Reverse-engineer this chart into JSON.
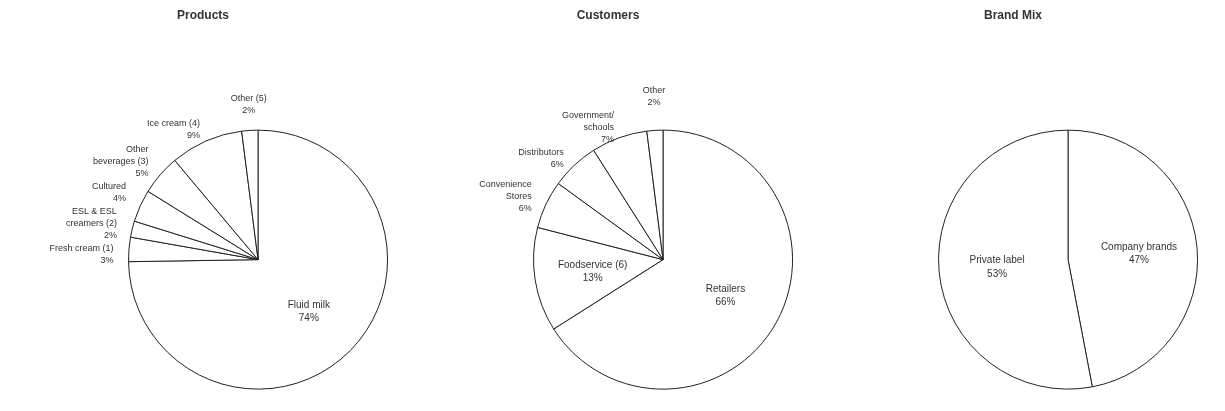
{
  "chart_data": [
    {
      "type": "pie",
      "title": "Products",
      "categories": [
        "Fluid milk",
        "Fresh cream (1)",
        "ESL & ESL creamers (2)",
        "Cultured",
        "Other beverages (3)",
        "Ice cream (4)",
        "Other (5)"
      ],
      "values": [
        74,
        3,
        2,
        4,
        5,
        9,
        2
      ],
      "value_labels": [
        "74%",
        "3%",
        "2%",
        "4%",
        "5%",
        "9%",
        "2%"
      ],
      "colors": [
        "#ffffff",
        "#ffffff",
        "#ffffff",
        "#ffffff",
        "#ffffff",
        "#ffffff",
        "#ffffff"
      ]
    },
    {
      "type": "pie",
      "title": "Customers",
      "categories": [
        "Retailers",
        "Foodservice (6)",
        "Convenience Stores",
        "Distributors",
        "Government/ schools",
        "Other"
      ],
      "values": [
        66,
        13,
        6,
        6,
        7,
        2
      ],
      "value_labels": [
        "66%",
        "13%",
        "6%",
        "6%",
        "7%",
        "2%"
      ],
      "colors": [
        "#ffffff",
        "#ffffff",
        "#ffffff",
        "#ffffff",
        "#ffffff",
        "#ffffff"
      ]
    },
    {
      "type": "pie",
      "title": "Brand Mix",
      "categories": [
        "Company brands",
        "Private label"
      ],
      "values": [
        47,
        53
      ],
      "value_labels": [
        "47%",
        "53%"
      ],
      "colors": [
        "#ffffff",
        "#ffffff"
      ]
    }
  ]
}
